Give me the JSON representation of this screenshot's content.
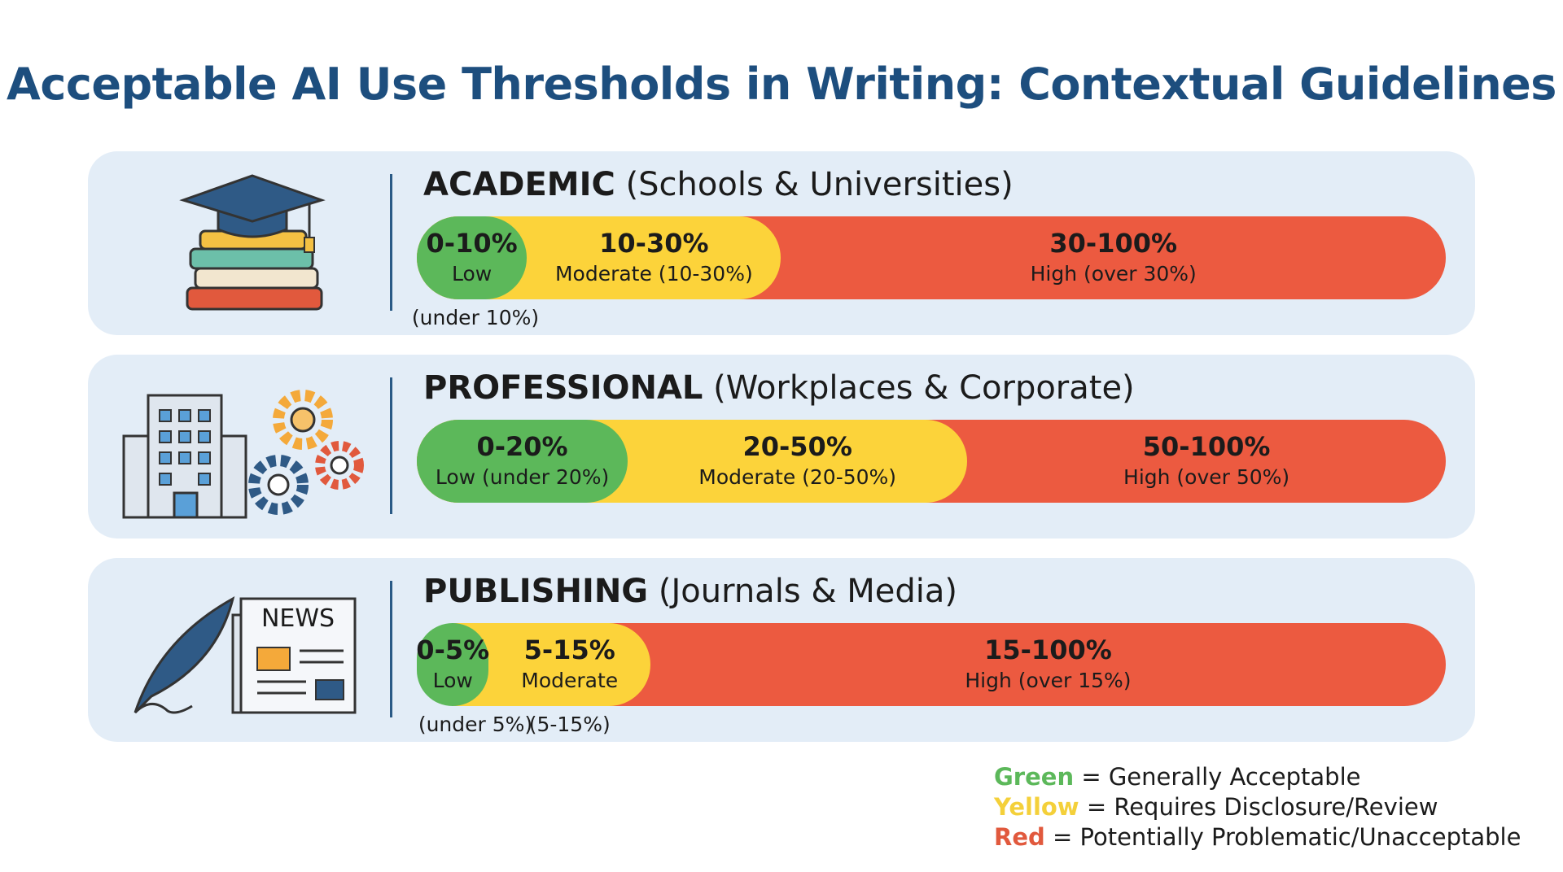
{
  "title": "Acceptable AI Use Thresholds in Writing: Contextual Guidelines",
  "sections": [
    {
      "name": "ACADEMIC",
      "subtitle": "(Schools & Universities)",
      "segments": [
        {
          "range": "0-10%",
          "label": "Low",
          "note": "(under 10%)"
        },
        {
          "range": "10-30%",
          "label": "Moderate (10-30%)"
        },
        {
          "range": "30-100%",
          "label": "High (over 30%)"
        }
      ]
    },
    {
      "name": "PROFESSIONAL",
      "subtitle": "(Workplaces & Corporate)",
      "segments": [
        {
          "range": "0-20%",
          "label": "Low (under 20%)"
        },
        {
          "range": "20-50%",
          "label": "Moderate (20-50%)"
        },
        {
          "range": "50-100%",
          "label": "High (over 50%)"
        }
      ]
    },
    {
      "name": "PUBLISHING",
      "subtitle": "(Journals & Media)",
      "segments": [
        {
          "range": "0-5%",
          "label": "Low",
          "note": "(under 5%)"
        },
        {
          "range": "5-15%",
          "label": "Moderate",
          "note": "(5-15%)"
        },
        {
          "range": "15-100%",
          "label": "High (over 15%)"
        }
      ]
    }
  ],
  "icon_text": "NEWS",
  "legend": [
    {
      "word": "Green",
      "text": "= Generally Acceptable"
    },
    {
      "word": "Yellow",
      "text": "= Requires Disclosure/Review"
    },
    {
      "word": "Red",
      "text": "= Potentially Problematic/Unacceptable"
    }
  ]
}
